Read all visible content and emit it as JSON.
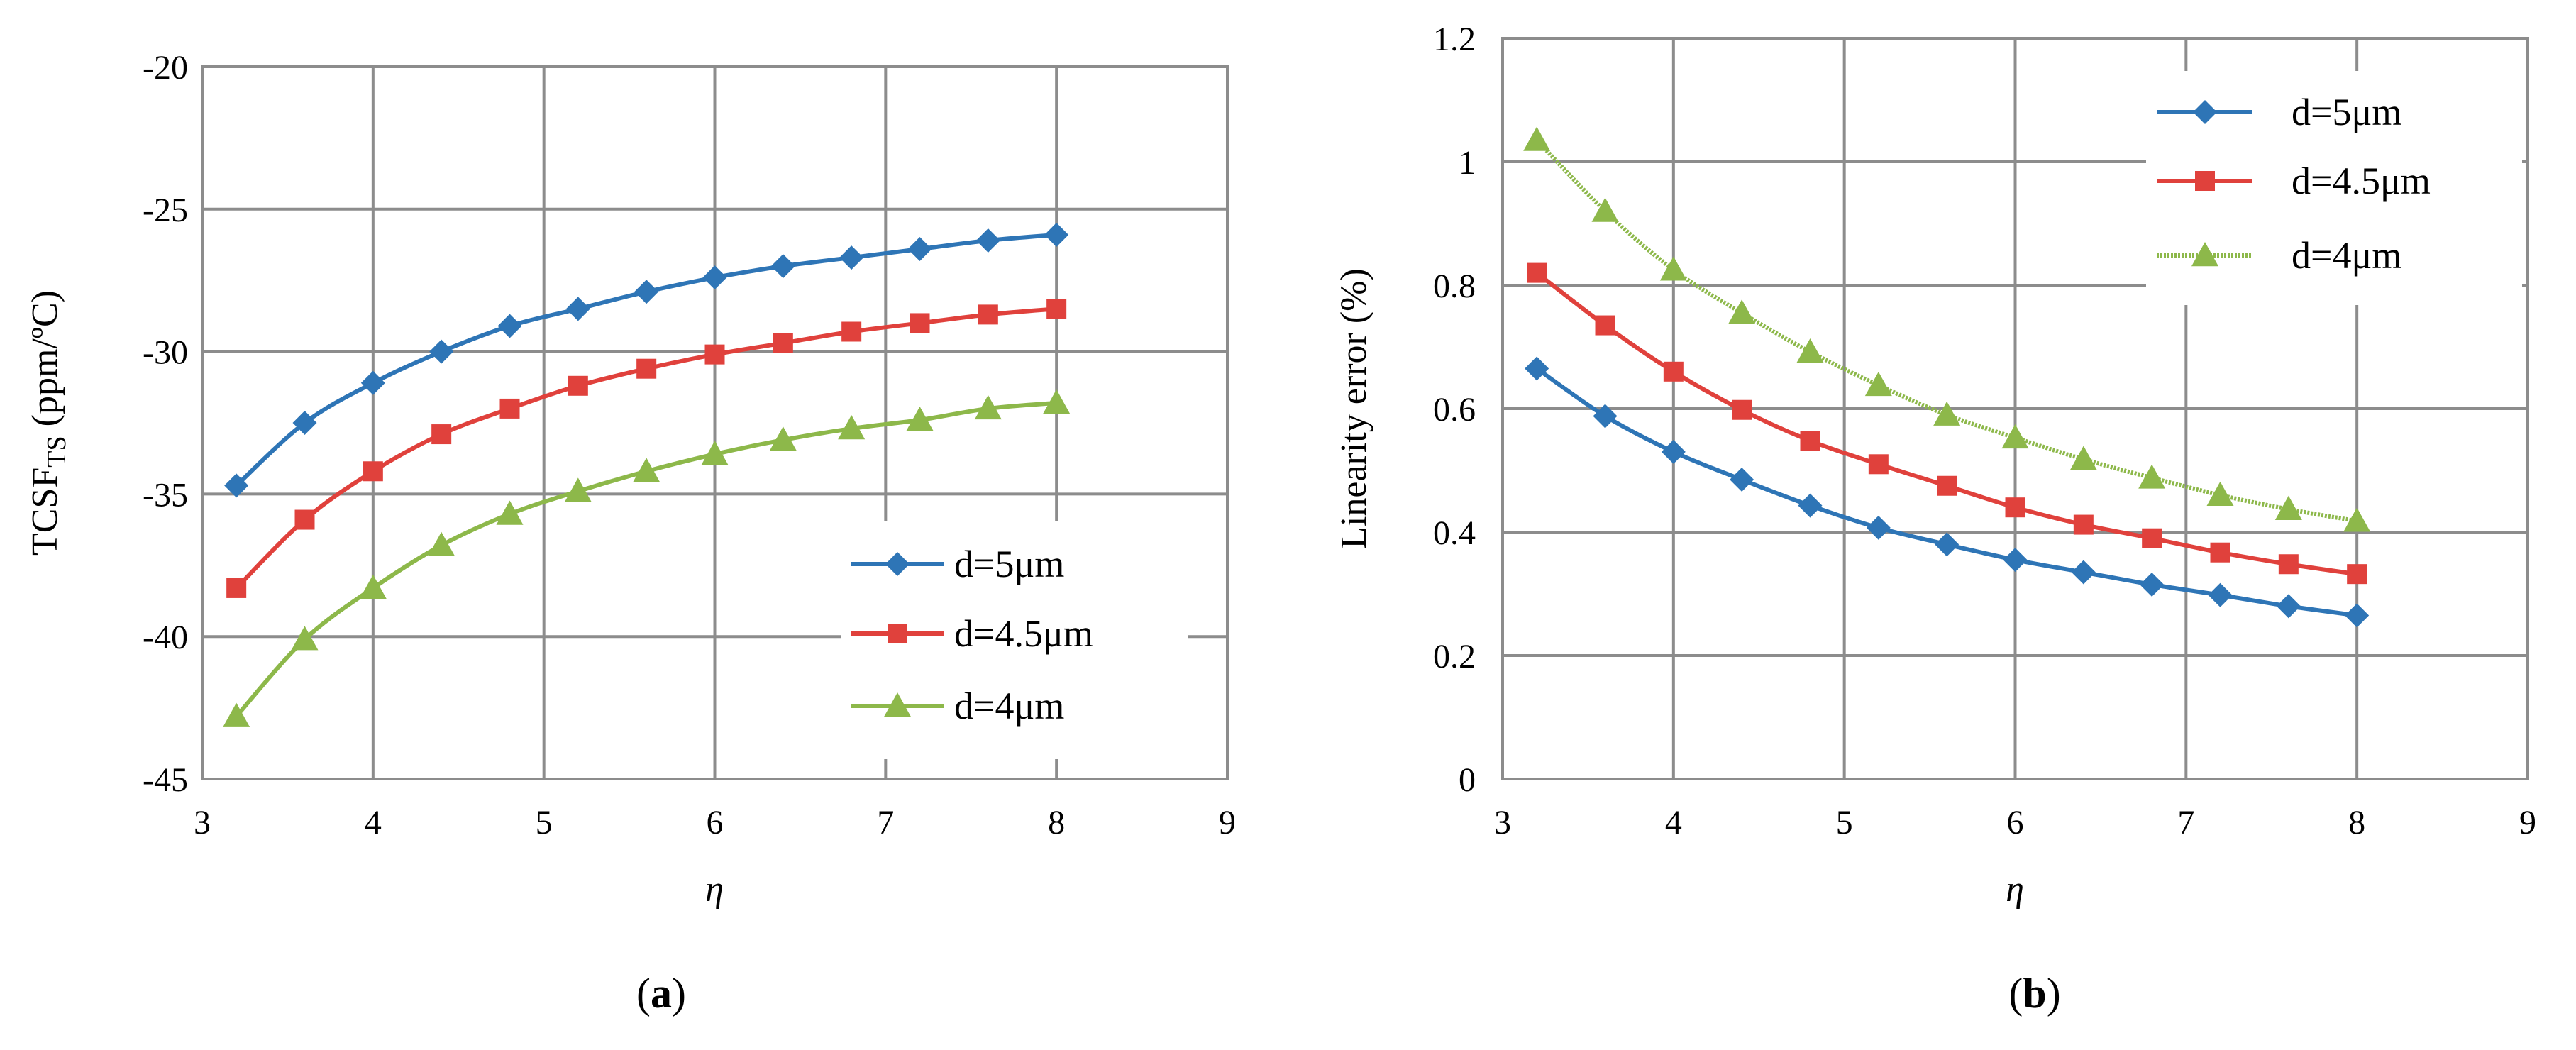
{
  "chart_data": [
    {
      "type": "line",
      "panel": "a",
      "caption": {
        "open": "(",
        "letter": "a",
        "close": ")"
      },
      "xlabel": "η",
      "ylabel": {
        "main": "TCSF",
        "sub": "TS",
        "unit": " (ppm/ºC)"
      },
      "xlim": [
        3,
        9
      ],
      "ylim": [
        -45,
        -20
      ],
      "xticks": [
        3,
        4,
        5,
        6,
        7,
        8,
        9
      ],
      "yticks": [
        -45,
        -40,
        -35,
        -30,
        -25,
        -20
      ],
      "legend_position": "bottom-right",
      "series": [
        {
          "name": "d=5μm",
          "color": "#2e75b6",
          "marker": "diamond",
          "x": [
            3.2,
            3.6,
            4.0,
            4.4,
            4.8,
            5.2,
            5.6,
            6.0,
            6.4,
            6.8,
            7.2,
            7.6,
            8.0
          ],
          "y": [
            -34.7,
            -32.5,
            -31.1,
            -30.0,
            -29.1,
            -28.5,
            -27.9,
            -27.4,
            -27.0,
            -26.7,
            -26.4,
            -26.1,
            -25.9
          ]
        },
        {
          "name": "d=4.5μm",
          "color": "#e0413c",
          "marker": "square",
          "x": [
            3.2,
            3.6,
            4.0,
            4.4,
            4.8,
            5.2,
            5.6,
            6.0,
            6.4,
            6.8,
            7.2,
            7.6,
            8.0
          ],
          "y": [
            -38.3,
            -35.9,
            -34.2,
            -32.9,
            -32.0,
            -31.2,
            -30.6,
            -30.1,
            -29.7,
            -29.3,
            -29.0,
            -28.7,
            -28.5
          ]
        },
        {
          "name": "d=4μm",
          "color": "#8db84a",
          "marker": "triangle",
          "x": [
            3.2,
            3.6,
            4.0,
            4.4,
            4.8,
            5.2,
            5.6,
            6.0,
            6.4,
            6.8,
            7.2,
            7.6,
            8.0
          ],
          "y": [
            -42.8,
            -40.1,
            -38.3,
            -36.8,
            -35.7,
            -34.9,
            -34.2,
            -33.6,
            -33.1,
            -32.7,
            -32.4,
            -32.0,
            -31.8
          ]
        }
      ]
    },
    {
      "type": "line",
      "panel": "b",
      "caption": {
        "open": "(",
        "letter": "b",
        "close": ")"
      },
      "xlabel": "η",
      "ylabel": "Linearity  error (%)",
      "xlim": [
        3,
        9
      ],
      "ylim": [
        0,
        1.2
      ],
      "xticks": [
        3,
        4,
        5,
        6,
        7,
        8,
        9
      ],
      "yticks": [
        0,
        0.2,
        0.4,
        0.6,
        0.8,
        1,
        1.2
      ],
      "legend_position": "top-right",
      "series": [
        {
          "name": "d=5μm",
          "color": "#2e75b6",
          "marker": "diamond",
          "x": [
            3.2,
            3.6,
            4.0,
            4.4,
            4.8,
            5.2,
            5.6,
            6.0,
            6.4,
            6.8,
            7.2,
            7.6,
            8.0
          ],
          "y": [
            0.665,
            0.588,
            0.53,
            0.485,
            0.443,
            0.407,
            0.38,
            0.355,
            0.335,
            0.315,
            0.298,
            0.28,
            0.265
          ]
        },
        {
          "name": "d=4.5μm",
          "color": "#e0413c",
          "marker": "square",
          "x": [
            3.2,
            3.6,
            4.0,
            4.4,
            4.8,
            5.2,
            5.6,
            6.0,
            6.4,
            6.8,
            7.2,
            7.6,
            8.0
          ],
          "y": [
            0.82,
            0.735,
            0.66,
            0.598,
            0.548,
            0.51,
            0.475,
            0.44,
            0.412,
            0.39,
            0.367,
            0.348,
            0.332
          ]
        },
        {
          "name": "d=4μm",
          "color": "#8db84a",
          "marker": "triangle",
          "x": [
            3.2,
            3.6,
            4.0,
            4.4,
            4.8,
            5.2,
            5.6,
            6.0,
            6.4,
            6.8,
            7.2,
            7.6,
            8.0
          ],
          "y": [
            1.035,
            0.92,
            0.825,
            0.755,
            0.692,
            0.638,
            0.59,
            0.553,
            0.518,
            0.488,
            0.46,
            0.437,
            0.418
          ]
        }
      ]
    }
  ]
}
